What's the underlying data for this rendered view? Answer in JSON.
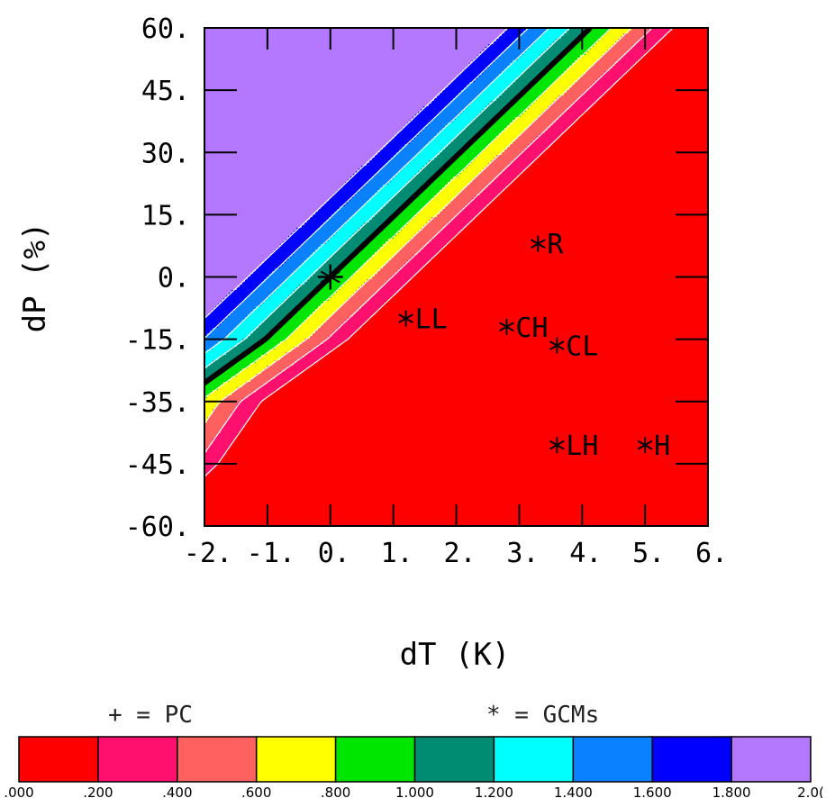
{
  "chart_data": {
    "type": "contour",
    "xlabel": "dT (K)",
    "ylabel": "dP (%)",
    "x_ticks": [
      "-2.",
      "-1.",
      "0.",
      "1.",
      "2.",
      "3.",
      "4.",
      "5.",
      "6."
    ],
    "y_ticks": [
      "60.",
      "45.",
      "30.",
      "15.",
      "0.",
      "-15.",
      "-35.",
      "-45.",
      "-60."
    ],
    "y_tick_values": [
      60,
      45,
      30,
      15,
      0,
      -15,
      -35,
      -45,
      -60
    ],
    "xlim": [
      -2,
      6
    ],
    "ylim": [
      -60,
      60
    ],
    "legend": {
      "pc_symbol": "+",
      "pc_label": "PC",
      "gcm_symbol": "*",
      "gcm_label": "GCMs",
      "pc_text": "+ = PC",
      "gcm_text": "* = GCMs"
    },
    "colorbar": {
      "labels": [
        ".000",
        ".200",
        ".400",
        ".600",
        ".800",
        "1.000",
        "1.200",
        "1.400",
        "1.600",
        "1.800",
        "2.0("
      ],
      "bin_edges": [
        0,
        0.2,
        0.4,
        0.6,
        0.8,
        1.0,
        1.2,
        1.4,
        1.6,
        1.8,
        2.0
      ],
      "colors": [
        "#ff0000",
        "#ff0f6e",
        "#ff6060",
        "#ffff00",
        "#00e600",
        "#008c73",
        "#00ffff",
        "#0a82ff",
        "#0000ff",
        "#b478ff"
      ]
    },
    "contour_levels": [
      0.2,
      0.4,
      0.6,
      0.8,
      1.0,
      1.2,
      1.4,
      1.6,
      1.8
    ],
    "highlight_level": 1.0,
    "gcm_points": [
      {
        "label": "R",
        "x": 3.3,
        "y": 8
      },
      {
        "label": "LL",
        "x": 1.2,
        "y": -10
      },
      {
        "label": "CH",
        "x": 2.8,
        "y": -12
      },
      {
        "label": "CL",
        "x": 3.6,
        "y": -17
      },
      {
        "label": "LH",
        "x": 3.6,
        "y": -42
      },
      {
        "label": "H",
        "x": 5.0,
        "y": -42
      }
    ],
    "pc_points": [
      {
        "x": 0.0,
        "y": 0
      }
    ],
    "field_model": {
      "description": "z = 1 + 0.042*dP - 0.61*dT (ratio field)",
      "a": 1.0,
      "b": 0.042,
      "c": -0.61
    }
  }
}
